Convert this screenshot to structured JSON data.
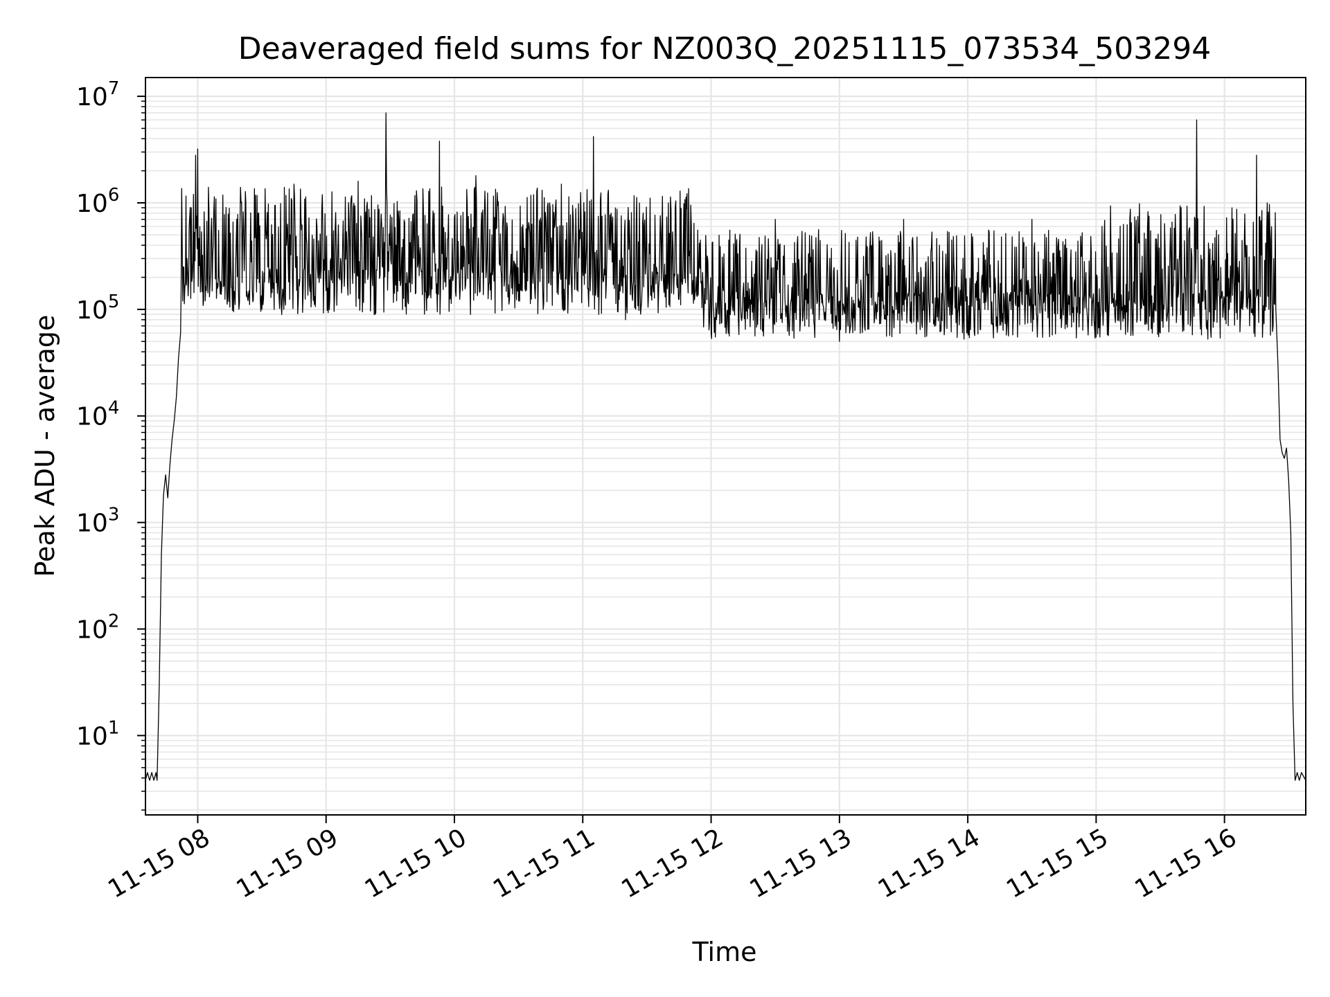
{
  "chart_data": {
    "type": "line",
    "title": "Deaveraged field sums for NZ003Q_20251115_073534_503294",
    "xlabel": "Time",
    "ylabel": "Peak ADU - average",
    "y_scale": "log",
    "ylim": [
      1.8,
      15000000
    ],
    "xlim": [
      "2025-11-15 07:35:34",
      "2025-11-15 16:38:00"
    ],
    "grid": "major and minor",
    "legend": "none",
    "line_color": "#000000",
    "xticks": [
      {
        "t": "2025-11-15 08:00",
        "label": "11-15 08"
      },
      {
        "t": "2025-11-15 09:00",
        "label": "11-15 09"
      },
      {
        "t": "2025-11-15 10:00",
        "label": "11-15 10"
      },
      {
        "t": "2025-11-15 11:00",
        "label": "11-15 11"
      },
      {
        "t": "2025-11-15 12:00",
        "label": "11-15 12"
      },
      {
        "t": "2025-11-15 13:00",
        "label": "11-15 13"
      },
      {
        "t": "2025-11-15 14:00",
        "label": "11-15 14"
      },
      {
        "t": "2025-11-15 15:00",
        "label": "11-15 15"
      },
      {
        "t": "2025-11-15 16:00",
        "label": "11-15 16"
      }
    ],
    "yticks": [
      {
        "exp": 1,
        "base": "10",
        "sup": "1"
      },
      {
        "exp": 2,
        "base": "10",
        "sup": "2"
      },
      {
        "exp": 3,
        "base": "10",
        "sup": "3"
      },
      {
        "exp": 4,
        "base": "10",
        "sup": "4"
      },
      {
        "exp": 5,
        "base": "10",
        "sup": "5"
      },
      {
        "exp": 6,
        "base": "10",
        "sup": "6"
      },
      {
        "exp": 7,
        "base": "10",
        "sup": "7"
      }
    ],
    "series": [
      {
        "points": [
          [
            "2025-11-15 07:35:34",
            3.8
          ],
          [
            "2025-11-15 07:36:30",
            4.5
          ],
          [
            "2025-11-15 07:37:30",
            3.8
          ],
          [
            "2025-11-15 07:38:30",
            4.5
          ],
          [
            "2025-11-15 07:39:30",
            3.8
          ],
          [
            "2025-11-15 07:40:30",
            4.5
          ],
          [
            "2025-11-15 07:41:00",
            3.8
          ],
          [
            "2025-11-15 07:42:00",
            30
          ],
          [
            "2025-11-15 07:43:00",
            500
          ],
          [
            "2025-11-15 07:44:00",
            1800
          ],
          [
            "2025-11-15 07:45:00",
            2800
          ],
          [
            "2025-11-15 07:46:00",
            1700
          ],
          [
            "2025-11-15 07:47:00",
            3500
          ],
          [
            "2025-11-15 07:48:00",
            6000
          ],
          [
            "2025-11-15 07:49:00",
            9000
          ],
          [
            "2025-11-15 07:50:00",
            15000
          ],
          [
            "2025-11-15 07:51:00",
            35000
          ],
          [
            "2025-11-15 07:52:00",
            60000
          ],
          [
            "2025-11-15 07:53:00",
            120000
          ],
          [
            "2025-11-15 07:54:00",
            160000
          ],
          [
            "2025-11-15 07:55:00",
            300000
          ],
          [
            "2025-11-15 07:56:00",
            600000
          ],
          [
            "2025-11-15 07:57:00",
            900000
          ],
          [
            "2025-11-15 07:58:00",
            1200000
          ],
          [
            "2025-11-15 07:59:00",
            2800000
          ],
          [
            "2025-11-15 08:00:00",
            3200000
          ],
          [
            "2025-11-15 08:01:00",
            600000
          ],
          [
            "2025-11-15 08:05:00",
            1400000
          ],
          [
            "2025-11-15 08:10:00",
            200000
          ],
          [
            "2025-11-15 08:20:00",
            1400000
          ],
          [
            "2025-11-15 08:30:00",
            100000
          ],
          [
            "2025-11-15 08:45:00",
            1500000
          ],
          [
            "2025-11-15 09:00:00",
            150000
          ],
          [
            "2025-11-15 09:15:00",
            1600000
          ],
          [
            "2025-11-15 09:28:00",
            7000000
          ],
          [
            "2025-11-15 09:40:00",
            300000
          ],
          [
            "2025-11-15 09:53:00",
            3800000
          ],
          [
            "2025-11-15 10:10:00",
            1800000
          ],
          [
            "2025-11-15 10:30:00",
            120000
          ],
          [
            "2025-11-15 10:50:00",
            1500000
          ],
          [
            "2025-11-15 11:05:00",
            4200000
          ],
          [
            "2025-11-15 11:20:00",
            80000
          ],
          [
            "2025-11-15 11:40:00",
            1000000
          ],
          [
            "2025-11-15 12:00:00",
            60000
          ],
          [
            "2025-11-15 12:30:00",
            700000
          ],
          [
            "2025-11-15 13:00:00",
            50000
          ],
          [
            "2025-11-15 13:30:00",
            700000
          ],
          [
            "2025-11-15 14:00:00",
            60000
          ],
          [
            "2025-11-15 14:30:00",
            700000
          ],
          [
            "2025-11-15 15:00:00",
            55000
          ],
          [
            "2025-11-15 15:30:00",
            60000
          ],
          [
            "2025-11-15 15:47:00",
            6000000
          ],
          [
            "2025-11-15 16:00:00",
            120000
          ],
          [
            "2025-11-15 16:10:00",
            400000
          ],
          [
            "2025-11-15 16:15:00",
            2800000
          ],
          [
            "2025-11-15 16:20:00",
            1000000
          ],
          [
            "2025-11-15 16:22:00",
            600000
          ],
          [
            "2025-11-15 16:23:00",
            300000
          ],
          [
            "2025-11-15 16:24:00",
            100000
          ],
          [
            "2025-11-15 16:25:00",
            30000
          ],
          [
            "2025-11-15 16:26:00",
            6000
          ],
          [
            "2025-11-15 16:27:00",
            4500
          ],
          [
            "2025-11-15 16:28:00",
            4000
          ],
          [
            "2025-11-15 16:29:00",
            5000
          ],
          [
            "2025-11-15 16:30:00",
            2500
          ],
          [
            "2025-11-15 16:31:00",
            800
          ],
          [
            "2025-11-15 16:32:00",
            20
          ],
          [
            "2025-11-15 16:33:00",
            3.8
          ],
          [
            "2025-11-15 16:34:00",
            4.5
          ],
          [
            "2025-11-15 16:35:00",
            3.8
          ],
          [
            "2025-11-15 16:36:00",
            4.5
          ],
          [
            "2025-11-15 16:38:00",
            3.8
          ]
        ]
      }
    ]
  }
}
